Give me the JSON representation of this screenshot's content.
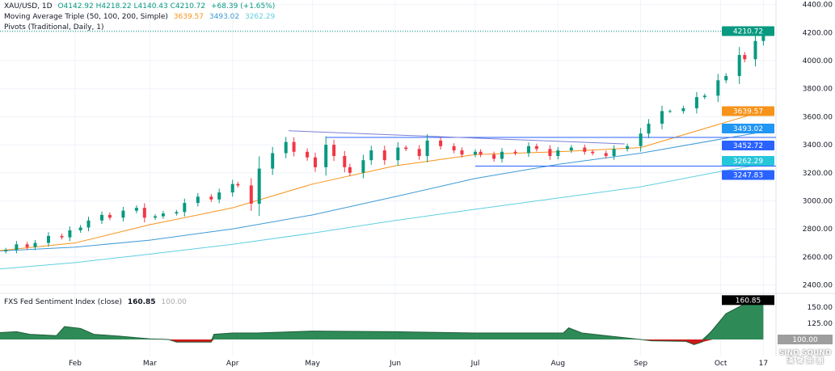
{
  "header": {
    "symbol": "XAU/USD, 1D",
    "open": "O4142.92",
    "high": "H4218.22",
    "low": "L4140.43",
    "close": "C4210.72",
    "change": "+68.39 (+1.65%)",
    "ma_label": "Moving Average Triple (50, 100, 200, Simple)",
    "ma50": "3639.57",
    "ma100": "3493.02",
    "ma200": "3262.29",
    "pivots_label": "Pivots (Traditional, Daily, 1)"
  },
  "sub": {
    "label": "FXS Fed Sentiment Index (close)",
    "value": "160.85",
    "ref": "100.00"
  },
  "watermark": "SINO SOUND 漢聲集團",
  "colors": {
    "up": "#089981",
    "down": "#f23645",
    "ma50": "#f7931a",
    "ma100": "#3d9ad6",
    "ma200": "#5fd0e0",
    "pivot": "#2962ff",
    "trend": "#7b7fd6",
    "sub_pos": "#2e8b57",
    "sub_neg": "#d01818"
  },
  "chart_data": [
    {
      "type": "candlestick",
      "title": "XAU/USD, 1D",
      "ylim": [
        2300,
        4420
      ],
      "yticks": [
        2400,
        2600,
        2800,
        3000,
        3200,
        3400,
        3600,
        3800,
        4000,
        4200,
        4400
      ],
      "xticks": [
        {
          "date": "2025-02-01",
          "label": "Feb"
        },
        {
          "date": "2025-03-01",
          "label": "Mar"
        },
        {
          "date": "2025-04-01",
          "label": "Apr"
        },
        {
          "date": "2025-05-01",
          "label": "May"
        },
        {
          "date": "2025-06-01",
          "label": "Jun"
        },
        {
          "date": "2025-07-01",
          "label": "Jul"
        },
        {
          "date": "2025-08-01",
          "label": "Aug"
        },
        {
          "date": "2025-09-01",
          "label": "Sep"
        },
        {
          "date": "2025-10-01",
          "label": "Oct"
        },
        {
          "date": "2025-10-17",
          "label": "17"
        }
      ],
      "closes": [
        [
          "2025-01-02",
          2640
        ],
        [
          "2025-01-06",
          2650
        ],
        [
          "2025-01-10",
          2690
        ],
        [
          "2025-01-14",
          2670
        ],
        [
          "2025-01-17",
          2700
        ],
        [
          "2025-01-22",
          2750
        ],
        [
          "2025-01-27",
          2740
        ],
        [
          "2025-01-30",
          2790
        ],
        [
          "2025-02-03",
          2810
        ],
        [
          "2025-02-06",
          2860
        ],
        [
          "2025-02-11",
          2900
        ],
        [
          "2025-02-14",
          2880
        ],
        [
          "2025-02-19",
          2930
        ],
        [
          "2025-02-24",
          2950
        ],
        [
          "2025-02-27",
          2880
        ],
        [
          "2025-03-03",
          2890
        ],
        [
          "2025-03-06",
          2910
        ],
        [
          "2025-03-11",
          2920
        ],
        [
          "2025-03-14",
          2985
        ],
        [
          "2025-03-19",
          3030
        ],
        [
          "2025-03-24",
          3010
        ],
        [
          "2025-03-27",
          3060
        ],
        [
          "2025-04-01",
          3120
        ],
        [
          "2025-04-03",
          3110
        ],
        [
          "2025-04-08",
          2980
        ],
        [
          "2025-04-11",
          3230
        ],
        [
          "2025-04-16",
          3340
        ],
        [
          "2025-04-21",
          3420
        ],
        [
          "2025-04-24",
          3350
        ],
        [
          "2025-04-29",
          3310
        ],
        [
          "2025-05-02",
          3240
        ],
        [
          "2025-05-06",
          3400
        ],
        [
          "2025-05-09",
          3320
        ],
        [
          "2025-05-13",
          3240
        ],
        [
          "2025-05-15",
          3200
        ],
        [
          "2025-05-20",
          3290
        ],
        [
          "2025-05-23",
          3360
        ],
        [
          "2025-05-28",
          3290
        ],
        [
          "2025-06-02",
          3380
        ],
        [
          "2025-06-05",
          3370
        ],
        [
          "2025-06-10",
          3320
        ],
        [
          "2025-06-13",
          3430
        ],
        [
          "2025-06-18",
          3390
        ],
        [
          "2025-06-23",
          3360
        ],
        [
          "2025-06-26",
          3330
        ],
        [
          "2025-07-01",
          3350
        ],
        [
          "2025-07-03",
          3330
        ],
        [
          "2025-07-08",
          3300
        ],
        [
          "2025-07-11",
          3350
        ],
        [
          "2025-07-16",
          3340
        ],
        [
          "2025-07-21",
          3390
        ],
        [
          "2025-07-24",
          3370
        ],
        [
          "2025-07-29",
          3320
        ],
        [
          "2025-08-01",
          3360
        ],
        [
          "2025-08-06",
          3380
        ],
        [
          "2025-08-11",
          3350
        ],
        [
          "2025-08-14",
          3340
        ],
        [
          "2025-08-19",
          3320
        ],
        [
          "2025-08-22",
          3370
        ],
        [
          "2025-08-27",
          3390
        ],
        [
          "2025-09-01",
          3480
        ],
        [
          "2025-09-04",
          3550
        ],
        [
          "2025-09-09",
          3640
        ],
        [
          "2025-09-12",
          3640
        ],
        [
          "2025-09-17",
          3660
        ],
        [
          "2025-09-22",
          3740
        ],
        [
          "2025-09-25",
          3750
        ],
        [
          "2025-09-30",
          3860
        ],
        [
          "2025-10-03",
          3890
        ],
        [
          "2025-10-08",
          4040
        ],
        [
          "2025-10-10",
          4010
        ],
        [
          "2025-10-14",
          4140
        ],
        [
          "2025-10-17",
          4210.72
        ]
      ],
      "last_price": 4210.72,
      "ma50": [
        [
          "2025-01-01",
          2640
        ],
        [
          "2025-02-01",
          2700
        ],
        [
          "2025-03-01",
          2830
        ],
        [
          "2025-04-01",
          2950
        ],
        [
          "2025-05-01",
          3120
        ],
        [
          "2025-06-01",
          3250
        ],
        [
          "2025-07-01",
          3330
        ],
        [
          "2025-08-01",
          3350
        ],
        [
          "2025-09-01",
          3380
        ],
        [
          "2025-10-01",
          3550
        ],
        [
          "2025-10-17",
          3639.57
        ]
      ],
      "ma100": [
        [
          "2025-01-01",
          2640
        ],
        [
          "2025-02-01",
          2670
        ],
        [
          "2025-03-01",
          2720
        ],
        [
          "2025-04-01",
          2800
        ],
        [
          "2025-05-01",
          2900
        ],
        [
          "2025-06-01",
          3030
        ],
        [
          "2025-07-01",
          3160
        ],
        [
          "2025-08-01",
          3260
        ],
        [
          "2025-09-01",
          3340
        ],
        [
          "2025-10-01",
          3440
        ],
        [
          "2025-10-17",
          3493.02
        ]
      ],
      "ma200": [
        [
          "2025-01-01",
          2510
        ],
        [
          "2025-02-01",
          2560
        ],
        [
          "2025-03-01",
          2620
        ],
        [
          "2025-04-01",
          2690
        ],
        [
          "2025-05-01",
          2770
        ],
        [
          "2025-06-01",
          2860
        ],
        [
          "2025-07-01",
          2940
        ],
        [
          "2025-08-01",
          3020
        ],
        [
          "2025-09-01",
          3100
        ],
        [
          "2025-10-01",
          3210
        ],
        [
          "2025-10-17",
          3262.29
        ]
      ],
      "pivots": [
        {
          "value": 3452.72,
          "from": "2025-05-06"
        },
        {
          "value": 3247.83,
          "from": "2025-07-01"
        }
      ],
      "trendline": [
        [
          "2025-04-22",
          3500
        ],
        [
          "2025-08-26",
          3406
        ]
      ]
    },
    {
      "type": "area",
      "title": "FXS Fed Sentiment Index (close)",
      "ylim": [
        75,
        170
      ],
      "baseline": 100,
      "yticks": [
        100,
        125,
        150
      ],
      "points": [
        [
          "2025-01-01",
          110
        ],
        [
          "2025-01-10",
          112
        ],
        [
          "2025-01-15",
          108
        ],
        [
          "2025-01-25",
          106
        ],
        [
          "2025-01-28",
          120
        ],
        [
          "2025-02-03",
          117
        ],
        [
          "2025-02-08",
          108
        ],
        [
          "2025-02-18",
          105
        ],
        [
          "2025-03-01",
          101
        ],
        [
          "2025-03-08",
          100
        ],
        [
          "2025-03-11",
          96
        ],
        [
          "2025-03-24",
          96
        ],
        [
          "2025-03-25",
          108
        ],
        [
          "2025-04-01",
          110
        ],
        [
          "2025-04-10",
          110
        ],
        [
          "2025-05-01",
          113
        ],
        [
          "2025-06-01",
          112
        ],
        [
          "2025-07-01",
          110
        ],
        [
          "2025-08-03",
          110
        ],
        [
          "2025-08-05",
          118
        ],
        [
          "2025-08-10",
          110
        ],
        [
          "2025-09-01",
          100
        ],
        [
          "2025-09-05",
          98
        ],
        [
          "2025-09-18",
          97
        ],
        [
          "2025-09-21",
          92
        ],
        [
          "2025-09-24",
          96
        ],
        [
          "2025-09-28",
          115
        ],
        [
          "2025-10-03",
          140
        ],
        [
          "2025-10-10",
          155
        ],
        [
          "2025-10-17",
          160.85
        ]
      ]
    }
  ]
}
